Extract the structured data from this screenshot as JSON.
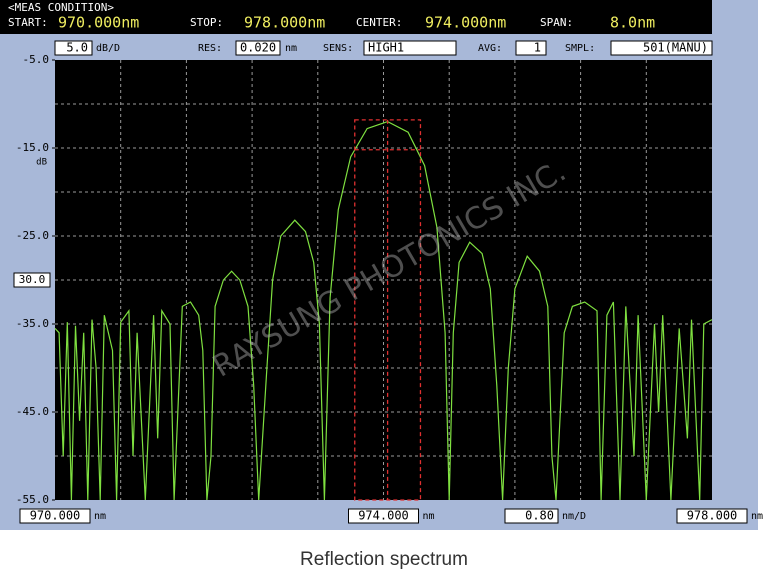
{
  "instrument": {
    "meas_condition": "<MEAS CONDITION>",
    "start_label": "START:",
    "start_value": "970.000nm",
    "stop_label": "STOP:",
    "stop_value": "978.000nm",
    "center_label": "CENTER:",
    "center_value": "974.000nm",
    "span_label": "SPAN:",
    "span_value": "8.0nm",
    "scale_value": "5.0",
    "scale_unit": "dB/D",
    "res_label": "RES:",
    "res_value": "0.020",
    "res_unit": "nm",
    "sens_label": "SENS:",
    "sens_value": "HIGH1",
    "avg_label": "AVG:",
    "avg_value": "1",
    "smpl_label": "SMPL:",
    "smpl_value": "501(MANU)",
    "xdiv_value": "0.80",
    "xdiv_unit": "nm/D",
    "watermark": "RAYSUNG PHOTONICS INC.",
    "caption": "Reflection spectrum"
  },
  "chart_data": {
    "type": "line",
    "y_unit": "dB",
    "x_unit": "nm",
    "xlim": [
      970,
      978
    ],
    "ylim": [
      -55,
      -5
    ],
    "xticks": [
      {
        "value": 970,
        "label": "970.000"
      },
      {
        "value": 974,
        "label": "974.000"
      },
      {
        "value": 978,
        "label": "978.000"
      }
    ],
    "yticks": [
      {
        "value": -5,
        "label": "-5.0"
      },
      {
        "value": -15,
        "label": "-15.0"
      },
      {
        "value": -25,
        "label": "-25.0"
      },
      {
        "value": -35,
        "label": "-35.0"
      },
      {
        "value": -45,
        "label": "-45.0"
      },
      {
        "value": -55,
        "label": "-55.0"
      }
    ],
    "xgrid": [
      970.8,
      971.6,
      972.4,
      973.2,
      974.0,
      974.8,
      975.6,
      976.4,
      977.2
    ],
    "ygrid": [
      -10,
      -15,
      -20,
      -25,
      -30,
      -35,
      -40,
      -45,
      -50
    ],
    "ref_marker": {
      "value": -30,
      "label": "30.0"
    },
    "highlight": {
      "x": [
        973.65,
        974.45
      ],
      "ytop": -11.8,
      "yline": -15.2,
      "xcenter": 974.05,
      "color": "#e03030"
    },
    "x": [
      970.0,
      970.05,
      970.1,
      970.15,
      970.2,
      970.25,
      970.3,
      970.35,
      970.4,
      970.45,
      970.5,
      970.55,
      970.6,
      970.7,
      970.75,
      970.8,
      970.9,
      970.95,
      971.0,
      971.1,
      971.2,
      971.25,
      971.3,
      971.4,
      971.45,
      971.55,
      971.65,
      971.75,
      971.8,
      971.85,
      971.9,
      971.95,
      972.05,
      972.15,
      972.25,
      972.35,
      972.42,
      972.48,
      972.58,
      972.65,
      972.75,
      972.92,
      973.05,
      973.15,
      973.22,
      973.28,
      973.35,
      973.45,
      973.6,
      973.8,
      974.05,
      974.3,
      974.5,
      974.65,
      974.75,
      974.8,
      974.85,
      974.92,
      975.05,
      975.2,
      975.3,
      975.38,
      975.45,
      975.52,
      975.6,
      975.75,
      975.9,
      976.0,
      976.05,
      976.1,
      976.2,
      976.3,
      976.45,
      976.6,
      976.65,
      976.72,
      976.8,
      976.88,
      976.95,
      977.05,
      977.1,
      977.2,
      977.3,
      977.35,
      977.4,
      977.5,
      977.6,
      977.7,
      977.75,
      977.85,
      977.9,
      978.0
    ],
    "series": [
      {
        "color": "#7fe040",
        "values": [
          -35.5,
          -36,
          -50,
          -34.8,
          -55,
          -35.2,
          -46,
          -36,
          -55,
          -34.5,
          -40,
          -55,
          -34,
          -38,
          -55,
          -34.8,
          -33.5,
          -50,
          -36,
          -55,
          -34,
          -48,
          -33.5,
          -35,
          -55,
          -33,
          -32.5,
          -34,
          -38,
          -55,
          -50,
          -33,
          -30,
          -29,
          -30,
          -33,
          -42,
          -55,
          -40,
          -30,
          -25,
          -23.2,
          -24.5,
          -28,
          -35,
          -55,
          -32,
          -22,
          -16,
          -12.8,
          -12,
          -13.2,
          -17,
          -24,
          -36,
          -55,
          -36,
          -28,
          -25.7,
          -27,
          -31,
          -42,
          -55,
          -40,
          -31,
          -27.3,
          -29,
          -33,
          -50,
          -55,
          -36,
          -33,
          -32.5,
          -33.5,
          -55,
          -34,
          -32.5,
          -55,
          -33,
          -50,
          -34,
          -55,
          -35,
          -45,
          -34,
          -55,
          -35.5,
          -48,
          -34.5,
          -55,
          -35,
          -34.5
        ]
      }
    ]
  }
}
